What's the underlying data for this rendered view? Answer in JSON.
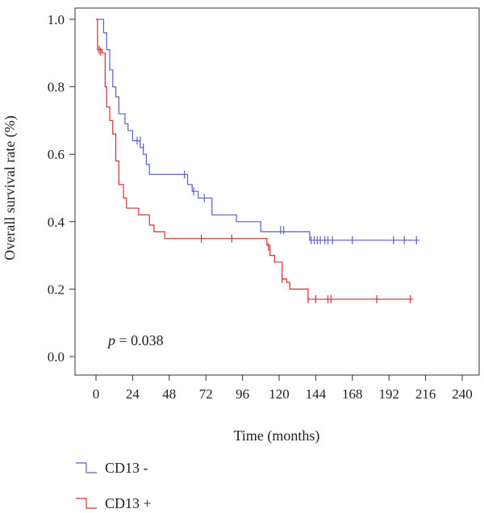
{
  "chart_data": {
    "type": "line",
    "subtype": "kaplan-meier step curves",
    "xlabel": "Time (months)",
    "ylabel": "Overall survival rate (%)",
    "xlim": [
      0,
      240
    ],
    "ylim": [
      0,
      1
    ],
    "x_ticks": [
      "0",
      "24",
      "48",
      "72",
      "96",
      "120",
      "144",
      "168",
      "192",
      "216",
      "240"
    ],
    "y_ticks": [
      "0.0",
      "0.2",
      "0.4",
      "0.6",
      "0.8",
      "1.0"
    ],
    "grid": false,
    "legend_position": "bottom-left",
    "annotation": {
      "prefix": "p",
      "text": " = 0.038"
    },
    "series": [
      {
        "name": "CD13 -",
        "color": "#5b5fc7",
        "steps": [
          [
            0,
            1.0
          ],
          [
            5,
            0.96
          ],
          [
            7,
            0.91
          ],
          [
            9,
            0.85
          ],
          [
            11,
            0.8
          ],
          [
            13,
            0.77
          ],
          [
            15,
            0.72
          ],
          [
            19,
            0.69
          ],
          [
            21,
            0.67
          ],
          [
            24,
            0.64
          ],
          [
            29,
            0.62
          ],
          [
            31,
            0.6
          ],
          [
            33,
            0.57
          ],
          [
            35,
            0.54
          ],
          [
            60,
            0.51
          ],
          [
            63,
            0.49
          ],
          [
            67,
            0.47
          ],
          [
            76,
            0.42
          ],
          [
            92,
            0.4
          ],
          [
            108,
            0.37
          ],
          [
            140,
            0.345
          ],
          [
            212,
            0.345
          ]
        ],
        "censored": [
          [
            27,
            0.64
          ],
          [
            29,
            0.64
          ],
          [
            31,
            0.62
          ],
          [
            58,
            0.54
          ],
          [
            64,
            0.49
          ],
          [
            71,
            0.47
          ],
          [
            121,
            0.375
          ],
          [
            123,
            0.375
          ],
          [
            141,
            0.345
          ],
          [
            143,
            0.345
          ],
          [
            145,
            0.345
          ],
          [
            147,
            0.345
          ],
          [
            150,
            0.345
          ],
          [
            152,
            0.345
          ],
          [
            155,
            0.345
          ],
          [
            168,
            0.345
          ],
          [
            195,
            0.345
          ],
          [
            202,
            0.345
          ],
          [
            210,
            0.345
          ]
        ]
      },
      {
        "name": "CD13 +",
        "color": "#d62f2f",
        "steps": [
          [
            0,
            1.0
          ],
          [
            1,
            0.91
          ],
          [
            4,
            0.9
          ],
          [
            6,
            0.8
          ],
          [
            7,
            0.74
          ],
          [
            9,
            0.7
          ],
          [
            11,
            0.66
          ],
          [
            13,
            0.58
          ],
          [
            15,
            0.51
          ],
          [
            18,
            0.47
          ],
          [
            20,
            0.44
          ],
          [
            28,
            0.42
          ],
          [
            35,
            0.39
          ],
          [
            38,
            0.37
          ],
          [
            45,
            0.35
          ],
          [
            110,
            0.35
          ],
          [
            112,
            0.33
          ],
          [
            114,
            0.3
          ],
          [
            117,
            0.28
          ],
          [
            122,
            0.23
          ],
          [
            125,
            0.22
          ],
          [
            127,
            0.2
          ],
          [
            139,
            0.17
          ],
          [
            208,
            0.17
          ]
        ],
        "censored": [
          [
            2,
            0.91
          ],
          [
            3,
            0.905
          ],
          [
            69,
            0.35
          ],
          [
            89,
            0.35
          ],
          [
            113,
            0.325
          ],
          [
            122,
            0.23
          ],
          [
            139,
            0.17
          ],
          [
            144,
            0.17
          ],
          [
            152,
            0.17
          ],
          [
            154,
            0.17
          ],
          [
            184,
            0.17
          ],
          [
            206,
            0.17
          ]
        ]
      }
    ]
  }
}
